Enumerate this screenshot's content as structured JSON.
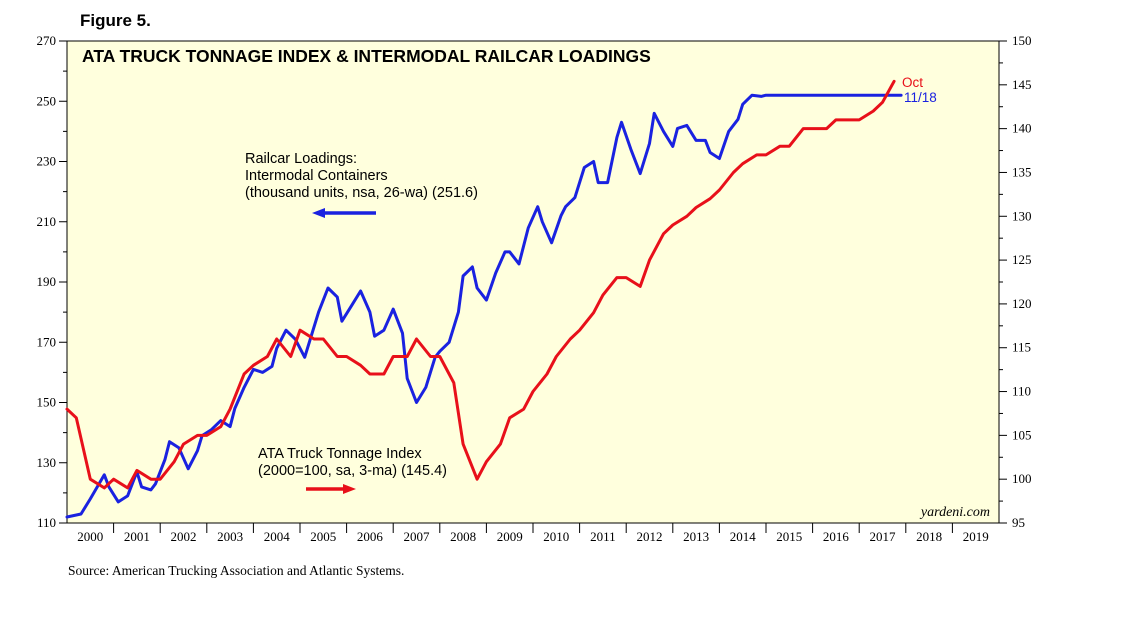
{
  "figure_label": "Figure 5.",
  "source": "Source: American Trucking Association and Atlantic Systems.",
  "chart_data": {
    "type": "line",
    "title": "ATA TRUCK TONNAGE INDEX & INTERMODAL RAILCAR LOADINGS",
    "credit": "yardeni.com",
    "background_color": "#ffffdd",
    "grid": false,
    "x_tick_labels": [
      "2000",
      "2001",
      "2002",
      "2003",
      "2004",
      "2005",
      "2006",
      "2007",
      "2008",
      "2009",
      "2010",
      "2011",
      "2012",
      "2013",
      "2014",
      "2015",
      "2016",
      "2017",
      "2018",
      "2019"
    ],
    "xlim": [
      2000,
      2020
    ],
    "left_axis": {
      "ticks": [
        110,
        130,
        150,
        170,
        190,
        210,
        230,
        250,
        270
      ],
      "ylim": [
        110,
        270
      ]
    },
    "right_axis": {
      "ticks": [
        95,
        100,
        105,
        110,
        115,
        120,
        125,
        130,
        135,
        140,
        145,
        150
      ],
      "ylim": [
        95,
        150
      ]
    },
    "series": [
      {
        "name": "Railcar Loadings: Intermodal Containers",
        "label_lines": [
          "Railcar Loadings:",
          "Intermodal Containers",
          "(thousand units, nsa, 26-wa) (251.6)"
        ],
        "end_label": "11/18",
        "color": "#1a22e0",
        "axis": "left",
        "x": [
          2000.0,
          2000.3,
          2000.5,
          2000.8,
          2000.9,
          2001.1,
          2001.3,
          2001.5,
          2001.6,
          2001.8,
          2001.9,
          2002.1,
          2002.2,
          2002.4,
          2002.6,
          2002.8,
          2002.9,
          2003.1,
          2003.3,
          2003.5,
          2003.6,
          2003.8,
          2004.0,
          2004.2,
          2004.4,
          2004.5,
          2004.7,
          2004.9,
          2005.1,
          2005.2,
          2005.4,
          2005.6,
          2005.8,
          2005.9,
          2006.1,
          2006.3,
          2006.5,
          2006.6,
          2006.8,
          2007.0,
          2007.2,
          2007.3,
          2007.5,
          2007.7,
          2007.9,
          2008.0,
          2008.2,
          2008.4,
          2008.5,
          2008.7,
          2008.8,
          2009.0,
          2009.2,
          2009.4,
          2009.5,
          2009.7,
          2009.9,
          2010.1,
          2010.2,
          2010.4,
          2010.6,
          2010.7,
          2010.9,
          2011.1,
          2011.3,
          2011.4,
          2011.6,
          2011.8,
          2011.9,
          2012.1,
          2012.3,
          2012.5,
          2012.6,
          2012.8,
          2013.0,
          2013.1,
          2013.3,
          2013.5,
          2013.7,
          2013.8,
          2014.0,
          2014.2,
          2014.4,
          2014.5,
          2014.7,
          2014.9,
          2015.0,
          2015.2,
          2015.4,
          2015.6,
          2015.7,
          2015.9,
          2016.1,
          2016.3,
          2016.4,
          2016.6,
          2016.8,
          2016.9,
          2017.1,
          2017.3,
          2017.5,
          2017.6,
          2017.8,
          2017.9
        ],
        "values": [
          112,
          113,
          118,
          126,
          122,
          117,
          119,
          127,
          122,
          121,
          123,
          131,
          137,
          135,
          128,
          134,
          139,
          141,
          144,
          142,
          148,
          155,
          161,
          160,
          162,
          168,
          174,
          171,
          165,
          170,
          180,
          188,
          185,
          177,
          182,
          187,
          180,
          172,
          174,
          181,
          173,
          158,
          150,
          155,
          165,
          167,
          170,
          180,
          192,
          195,
          188,
          184,
          193,
          200,
          200,
          196,
          208,
          215,
          210,
          203,
          212,
          215,
          218,
          228,
          230,
          223,
          223,
          238,
          243,
          234,
          226,
          236,
          246,
          240,
          235,
          241,
          242,
          237,
          237,
          233,
          231,
          240,
          244,
          249,
          252,
          251.6,
          252,
          252,
          252,
          252,
          252,
          252,
          252,
          252,
          252,
          252,
          252,
          252,
          252,
          252,
          252,
          252,
          252,
          252
        ]
      },
      {
        "name": "ATA Truck Tonnage Index",
        "label_lines": [
          "ATA Truck Tonnage Index",
          "(2000=100, sa, 3-ma) (145.4)"
        ],
        "end_label": "Oct",
        "color": "#e8101a",
        "axis": "right",
        "x": [
          2000.0,
          2000.2,
          2000.5,
          2000.8,
          2001.0,
          2001.3,
          2001.5,
          2001.8,
          2002.0,
          2002.3,
          2002.5,
          2002.8,
          2003.0,
          2003.3,
          2003.5,
          2003.8,
          2004.0,
          2004.3,
          2004.5,
          2004.8,
          2005.0,
          2005.3,
          2005.5,
          2005.8,
          2006.0,
          2006.3,
          2006.5,
          2006.8,
          2007.0,
          2007.3,
          2007.5,
          2007.8,
          2008.0,
          2008.3,
          2008.5,
          2008.8,
          2009.0,
          2009.3,
          2009.5,
          2009.8,
          2010.0,
          2010.3,
          2010.5,
          2010.8,
          2011.0,
          2011.3,
          2011.5,
          2011.8,
          2012.0,
          2012.3,
          2012.5,
          2012.8,
          2013.0,
          2013.3,
          2013.5,
          2013.8,
          2014.0,
          2014.3,
          2014.5,
          2014.8,
          2015.0,
          2015.3,
          2015.5,
          2015.8,
          2016.0,
          2016.3,
          2016.5,
          2016.8,
          2017.0,
          2017.3,
          2017.5,
          2017.75
        ],
        "values": [
          108,
          107,
          100,
          99,
          100,
          99,
          101,
          100,
          100,
          102,
          104,
          105,
          105,
          106,
          108,
          112,
          113,
          114,
          116,
          114,
          117,
          116,
          116,
          114,
          114,
          113,
          112,
          112,
          114,
          114,
          116,
          114,
          114,
          111,
          104,
          100,
          102,
          104,
          107,
          108,
          110,
          112,
          114,
          116,
          117,
          119,
          121,
          123,
          123,
          122,
          125,
          128,
          129,
          130,
          131,
          132,
          133,
          135,
          136,
          137,
          137,
          138,
          138,
          140,
          140,
          140,
          141,
          141,
          141,
          142,
          143,
          145.4
        ]
      }
    ],
    "arrows": [
      {
        "series": "Railcar Loadings: Intermodal Containers",
        "direction": "left"
      },
      {
        "series": "ATA Truck Tonnage Index",
        "direction": "right"
      }
    ]
  }
}
